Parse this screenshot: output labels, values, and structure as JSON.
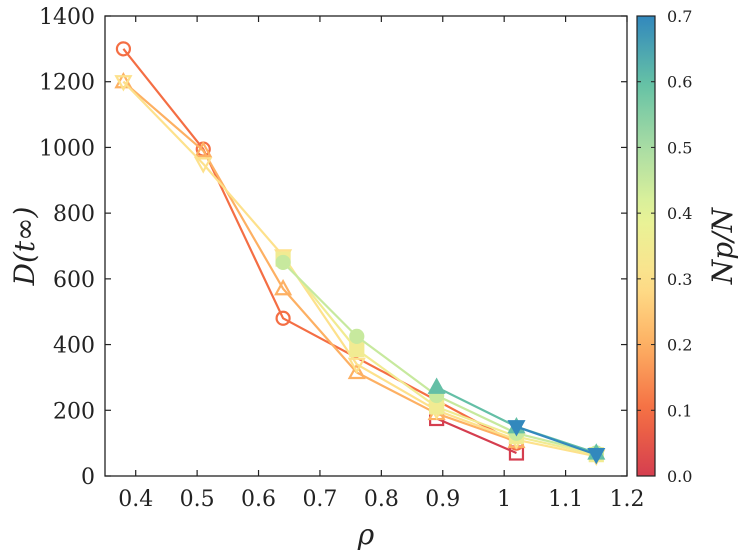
{
  "chart_data": {
    "type": "line",
    "xlabel": "ρ",
    "ylabel": "D(t∞)",
    "xlim": [
      0.35,
      1.2
    ],
    "ylim": [
      0,
      1400
    ],
    "xticks": [
      0.4,
      0.5,
      0.6,
      0.7,
      0.8,
      0.9,
      1,
      1.1,
      1.2
    ],
    "xtick_labels": [
      "0.4",
      "0.5",
      "0.6",
      "0.7",
      "0.8",
      "0.9",
      "1",
      "1.1",
      "1.2"
    ],
    "yticks": [
      0,
      200,
      400,
      600,
      800,
      1000,
      1200,
      1400
    ],
    "ytick_labels": [
      "0",
      "200",
      "400",
      "600",
      "800",
      "1000",
      "1200",
      "1400"
    ],
    "colorbar": {
      "label": "Np/N",
      "range": [
        0.0,
        0.7
      ],
      "ticks": [
        0.0,
        0.1,
        0.2,
        0.3,
        0.4,
        0.5,
        0.6,
        0.7
      ],
      "tick_labels": [
        "0.0",
        "0.1",
        "0.2",
        "0.3",
        "0.4",
        "0.5",
        "0.6",
        "0.7"
      ]
    },
    "series": [
      {
        "marker": "square-open",
        "color_value": 0.0,
        "points": [
          [
            0.89,
            175
          ],
          [
            1.02,
            70
          ]
        ]
      },
      {
        "marker": "circle-open",
        "color_value": 0.1,
        "points": [
          [
            0.38,
            1300
          ],
          [
            0.51,
            995
          ],
          [
            0.64,
            480
          ],
          [
            1.02,
            100
          ]
        ]
      },
      {
        "marker": "triangle-up-open",
        "color_value": 0.2,
        "points": [
          [
            0.38,
            1200
          ],
          [
            0.51,
            990
          ],
          [
            0.64,
            570
          ],
          [
            0.76,
            315
          ],
          [
            0.89,
            190
          ],
          [
            1.02,
            105
          ]
        ]
      },
      {
        "marker": "triangle-down-open",
        "color_value": 0.3,
        "points": [
          [
            0.38,
            1200
          ],
          [
            0.51,
            950
          ],
          [
            0.64,
            670
          ],
          [
            0.76,
            340
          ],
          [
            0.89,
            200
          ],
          [
            1.02,
            110
          ],
          [
            1.15,
            60
          ]
        ]
      },
      {
        "marker": "square-filled",
        "color_value": 0.35,
        "points": [
          [
            0.64,
            660
          ],
          [
            0.76,
            385
          ],
          [
            0.89,
            210
          ],
          [
            1.02,
            120
          ],
          [
            1.15,
            65
          ]
        ]
      },
      {
        "marker": "circle-filled",
        "color_value": 0.45,
        "points": [
          [
            0.64,
            650
          ],
          [
            0.76,
            425
          ],
          [
            0.89,
            245
          ],
          [
            1.02,
            130
          ],
          [
            1.15,
            70
          ]
        ]
      },
      {
        "marker": "triangle-up-filled",
        "color_value": 0.6,
        "points": [
          [
            0.89,
            270
          ],
          [
            1.02,
            150
          ],
          [
            1.15,
            70
          ]
        ]
      },
      {
        "marker": "triangle-down-filled",
        "color_value": 0.7,
        "points": [
          [
            1.02,
            150
          ],
          [
            1.15,
            65
          ]
        ]
      }
    ]
  }
}
